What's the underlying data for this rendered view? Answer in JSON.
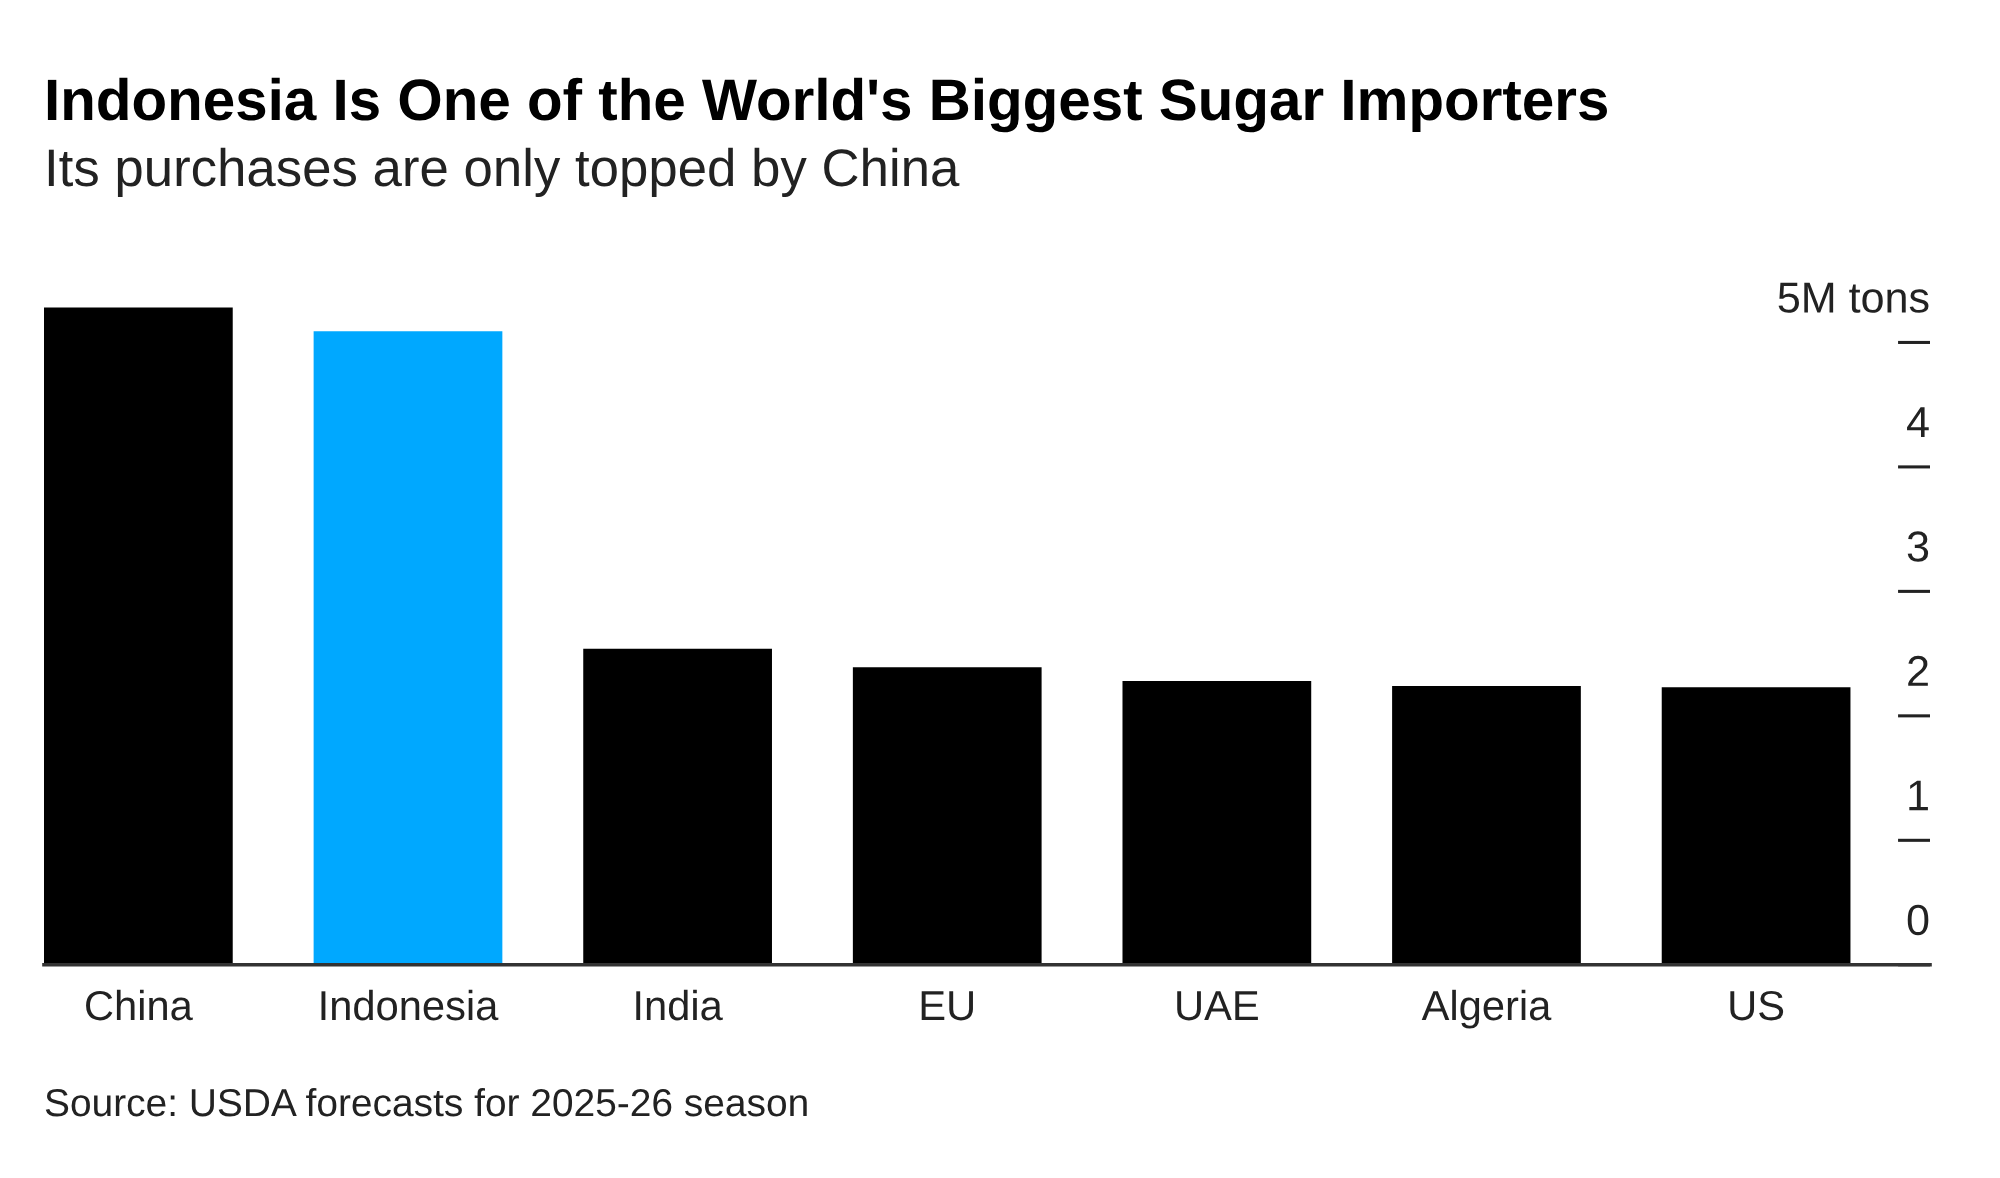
{
  "chart_data": {
    "type": "bar",
    "title": "Indonesia Is One of the World's Biggest Sugar Importers",
    "subtitle": "Its purchases are only topped by China",
    "categories": [
      "China",
      "Indonesia",
      "India",
      "EU",
      "UAE",
      "Algeria",
      "US"
    ],
    "values": [
      5.28,
      5.09,
      2.54,
      2.39,
      2.28,
      2.24,
      2.23
    ],
    "colors": [
      "#000000",
      "#00a8ff",
      "#000000",
      "#000000",
      "#000000",
      "#000000",
      "#000000"
    ],
    "ylim": [
      0,
      5.3
    ],
    "yticks": [
      0,
      1,
      2,
      3,
      4,
      {
        "value": 5,
        "label": "5M tons"
      }
    ],
    "annotations": [
      "Source: USDA forecasts for 2025-26 season"
    ]
  }
}
